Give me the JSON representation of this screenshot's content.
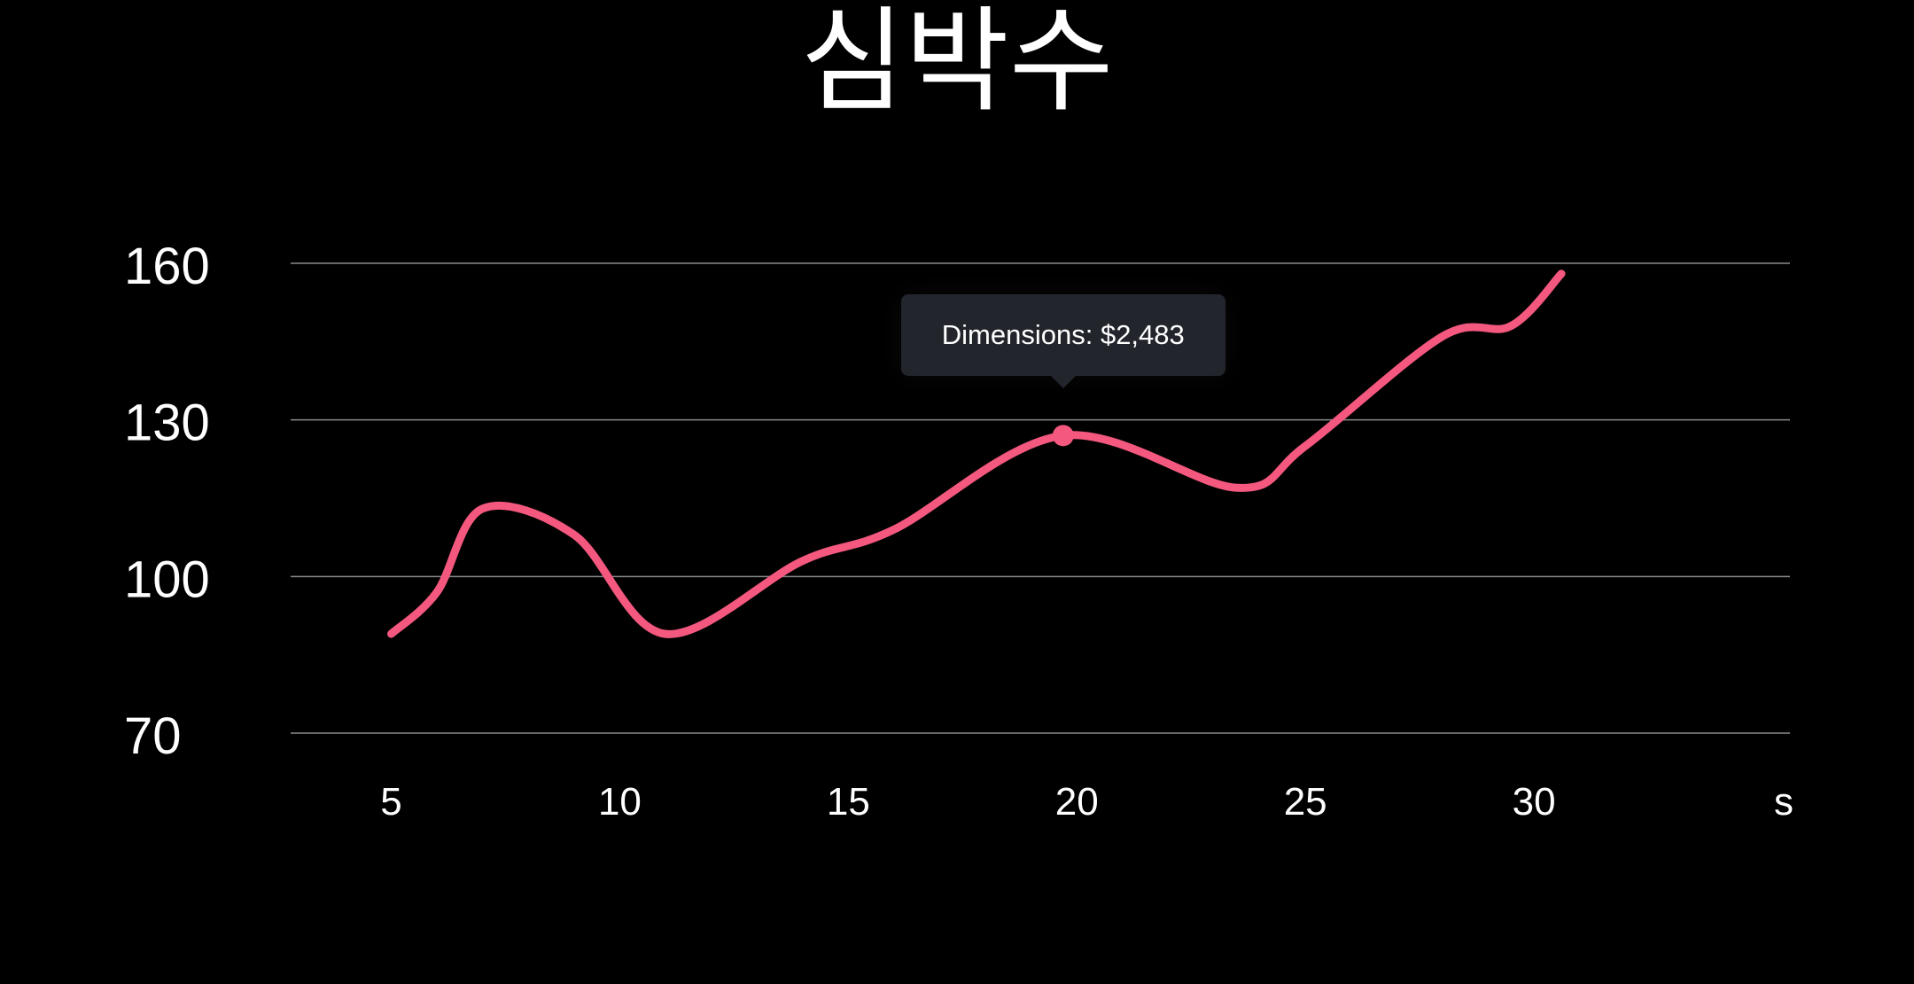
{
  "chart_data": {
    "type": "line",
    "title": "심박수",
    "xlabel": "s",
    "ylabel": "",
    "x_ticks": [
      5,
      10,
      15,
      20,
      25,
      30
    ],
    "y_ticks": [
      70,
      100,
      130,
      160
    ],
    "xlim": [
      2.8,
      35.6
    ],
    "ylim": [
      70,
      160
    ],
    "grid": true,
    "series": [
      {
        "color": "#f4587f",
        "x": [
          5,
          6,
          7,
          9,
          11,
          14,
          16,
          19.7,
          23.5,
          25,
          28,
          29.5,
          30.6
        ],
        "y": [
          89,
          97,
          113,
          108,
          89,
          103,
          109,
          127,
          117,
          125,
          146,
          148,
          158
        ]
      }
    ],
    "highlight": {
      "x": 19.7,
      "y": 127
    }
  },
  "tooltip": {
    "text": "Dimensions: $2,483"
  },
  "colors": {
    "background": "#000000",
    "line": "#f4587f",
    "grid": "#8a8a8a",
    "text": "#ffffff",
    "tooltip_bg": "#22262c"
  }
}
